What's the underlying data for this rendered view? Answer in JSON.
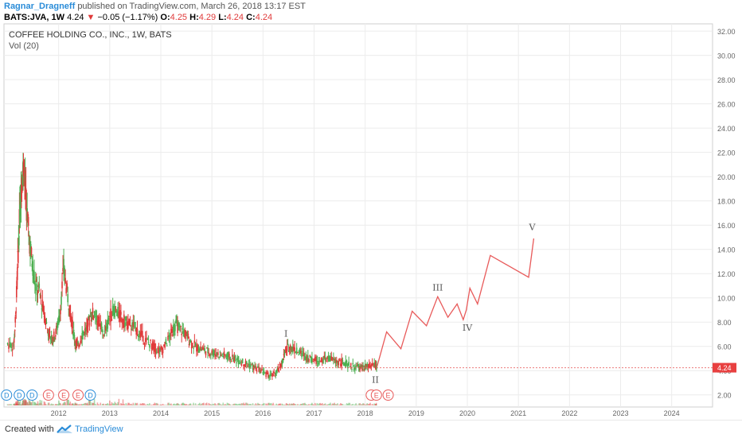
{
  "header": {
    "author": "Ragnar_Dragneff",
    "published": "published on TradingView.com, March 26, 2018 13:17 EST",
    "symbol": "BATS:JVA, 1W",
    "price": "4.24",
    "change_arrow": "▼",
    "change": "−0.05 (−1.17%)",
    "open_label": "O:",
    "open": "4.25",
    "high_label": "H:",
    "high": "4.29",
    "low_label": "L:",
    "low": "4.24",
    "close_label": "C:",
    "close": "4.24"
  },
  "legend": {
    "title": "COFFEE HOLDING CO., INC., 1W, BATS",
    "volume": "Vol (20)"
  },
  "footer": {
    "created_with": "Created with",
    "brand": "TradingView"
  },
  "colors": {
    "up": "#4caf50",
    "down": "#e03a3a",
    "wave": "#e85a5a",
    "price_line": "#e85a5a",
    "price_badge": "#e84040",
    "event_div": "#2a8cd8",
    "event_earn": "#e85a5a",
    "grid": "#ececec",
    "axis_text": "#666666"
  },
  "chart_data": {
    "type": "line",
    "ylim": [
      1.0,
      32.6
    ],
    "y_ticks": [
      "2.00",
      "4.00",
      "6.00",
      "8.00",
      "10.00",
      "12.00",
      "14.00",
      "16.00",
      "18.00",
      "20.00",
      "22.00",
      "24.00",
      "26.00",
      "28.00",
      "30.00",
      "32.00"
    ],
    "x_ticks": [
      "2012",
      "2013",
      "2014",
      "2015",
      "2016",
      "2017",
      "2018",
      "2019",
      "2020",
      "2021",
      "2022",
      "2023",
      "2024"
    ],
    "last_price": "4.24",
    "price_series": {
      "name": "",
      "x": [
        2011.0,
        2011.12,
        2011.16,
        2011.2,
        2011.24,
        2011.28,
        2011.32,
        2011.36,
        2011.42,
        2011.48,
        2011.55,
        2011.62,
        2011.7,
        2011.78,
        2011.86,
        2011.94,
        2012.02,
        2012.1,
        2012.18,
        2012.26,
        2012.32,
        2012.38,
        2012.46,
        2012.55,
        2012.62,
        2012.7,
        2012.8,
        2012.9,
        2013.0,
        2013.1,
        2013.2,
        2013.3,
        2013.4,
        2013.5,
        2013.6,
        2013.7,
        2013.8,
        2013.9,
        2014.0,
        2014.1,
        2014.2,
        2014.28,
        2014.36,
        2014.44,
        2014.52,
        2014.6,
        2014.7,
        2014.8,
        2014.9,
        2015.0,
        2015.1,
        2015.2,
        2015.3,
        2015.4,
        2015.5,
        2015.6,
        2015.7,
        2015.8,
        2015.9,
        2016.0,
        2016.1,
        2016.2,
        2016.28,
        2016.36,
        2016.44,
        2016.52,
        2016.6,
        2016.7,
        2016.8,
        2016.9,
        2017.0,
        2017.1,
        2017.2,
        2017.3,
        2017.4,
        2017.5,
        2017.6,
        2017.7,
        2017.8,
        2017.9,
        2018.0,
        2018.1,
        2018.2,
        2018.23
      ],
      "values": [
        6.2,
        6.0,
        8.5,
        13.0,
        17.0,
        20.0,
        21.0,
        18.0,
        15.0,
        13.0,
        11.0,
        10.5,
        9.0,
        7.5,
        6.5,
        7.0,
        8.5,
        12.5,
        10.0,
        8.0,
        6.5,
        6.0,
        7.0,
        7.5,
        8.5,
        8.8,
        7.8,
        7.0,
        8.5,
        9.0,
        8.5,
        8.0,
        7.8,
        7.5,
        7.0,
        6.5,
        6.2,
        5.8,
        5.6,
        6.2,
        7.0,
        7.8,
        7.5,
        7.2,
        6.8,
        6.3,
        5.9,
        5.8,
        5.6,
        5.5,
        5.4,
        5.3,
        5.2,
        5.0,
        4.9,
        4.7,
        4.5,
        4.3,
        4.1,
        3.9,
        3.6,
        3.6,
        3.9,
        4.5,
        5.6,
        6.0,
        5.8,
        5.5,
        5.3,
        5.0,
        4.9,
        4.8,
        4.9,
        5.0,
        4.8,
        4.7,
        4.6,
        4.4,
        4.3,
        4.2,
        4.3,
        4.3,
        4.4,
        4.24
      ]
    },
    "projection": {
      "name": "",
      "x": [
        2018.23,
        2018.42,
        2018.7,
        2018.92,
        2019.2,
        2019.42,
        2019.62,
        2019.8,
        2019.92,
        2019.98,
        2020.05,
        2020.2,
        2020.45,
        2021.2,
        2021.3
      ],
      "y": [
        4.3,
        7.2,
        5.8,
        8.9,
        7.7,
        10.1,
        8.4,
        9.5,
        8.2,
        9.0,
        10.8,
        9.5,
        13.5,
        11.7,
        14.9
      ]
    },
    "wave_labels": [
      {
        "label": "I",
        "x": 2016.45,
        "y": 6.8
      },
      {
        "label": "II",
        "x": 2018.2,
        "y": 3.0
      },
      {
        "label": "III",
        "x": 2019.42,
        "y": 10.6
      },
      {
        "label": "IV",
        "x": 2020.0,
        "y": 7.3
      },
      {
        "label": "V",
        "x": 2021.27,
        "y": 15.6
      }
    ],
    "events": [
      {
        "type": "D",
        "x": 2010.98
      },
      {
        "type": "D",
        "x": 2011.23
      },
      {
        "type": "D",
        "x": 2011.48
      },
      {
        "type": "E",
        "x": 2011.8
      },
      {
        "type": "E",
        "x": 2012.1
      },
      {
        "type": "E",
        "x": 2012.38
      },
      {
        "type": "D",
        "x": 2012.62
      },
      {
        "type": "",
        "x": 2018.12
      },
      {
        "type": "E",
        "x": 2018.22
      },
      {
        "type": "E",
        "x": 2018.45
      }
    ]
  }
}
